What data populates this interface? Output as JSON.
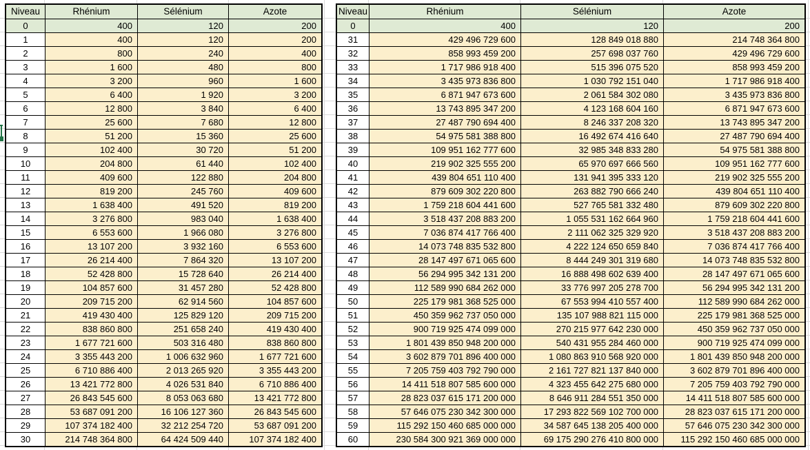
{
  "app": {
    "colors": {
      "header_fill": "#DFEAD4",
      "data_fill": "#FCEFCC",
      "cell_border": "#000000",
      "gridline": "#D9D9D9",
      "selection_green": "#217346",
      "text": "#000000"
    }
  },
  "tables": [
    {
      "columns": [
        "Niveau",
        "Rhénium",
        "Sélénium",
        "Azote"
      ],
      "base_row": [
        "0",
        "400",
        "120",
        "200"
      ],
      "rows": [
        [
          "1",
          "400",
          "120",
          "200"
        ],
        [
          "2",
          "800",
          "240",
          "400"
        ],
        [
          "3",
          "1 600",
          "480",
          "800"
        ],
        [
          "4",
          "3 200",
          "960",
          "1 600"
        ],
        [
          "5",
          "6 400",
          "1 920",
          "3 200"
        ],
        [
          "6",
          "12 800",
          "3 840",
          "6 400"
        ],
        [
          "7",
          "25 600",
          "7 680",
          "12 800"
        ],
        [
          "8",
          "51 200",
          "15 360",
          "25 600"
        ],
        [
          "9",
          "102 400",
          "30 720",
          "51 200"
        ],
        [
          "10",
          "204 800",
          "61 440",
          "102 400"
        ],
        [
          "11",
          "409 600",
          "122 880",
          "204 800"
        ],
        [
          "12",
          "819 200",
          "245 760",
          "409 600"
        ],
        [
          "13",
          "1 638 400",
          "491 520",
          "819 200"
        ],
        [
          "14",
          "3 276 800",
          "983 040",
          "1 638 400"
        ],
        [
          "15",
          "6 553 600",
          "1 966 080",
          "3 276 800"
        ],
        [
          "16",
          "13 107 200",
          "3 932 160",
          "6 553 600"
        ],
        [
          "17",
          "26 214 400",
          "7 864 320",
          "13 107 200"
        ],
        [
          "18",
          "52 428 800",
          "15 728 640",
          "26 214 400"
        ],
        [
          "19",
          "104 857 600",
          "31 457 280",
          "52 428 800"
        ],
        [
          "20",
          "209 715 200",
          "62 914 560",
          "104 857 600"
        ],
        [
          "21",
          "419 430 400",
          "125 829 120",
          "209 715 200"
        ],
        [
          "22",
          "838 860 800",
          "251 658 240",
          "419 430 400"
        ],
        [
          "23",
          "1 677 721 600",
          "503 316 480",
          "838 860 800"
        ],
        [
          "24",
          "3 355 443 200",
          "1 006 632 960",
          "1 677 721 600"
        ],
        [
          "25",
          "6 710 886 400",
          "2 013 265 920",
          "3 355 443 200"
        ],
        [
          "26",
          "13 421 772 800",
          "4 026 531 840",
          "6 710 886 400"
        ],
        [
          "27",
          "26 843 545 600",
          "8 053 063 680",
          "13 421 772 800"
        ],
        [
          "28",
          "53 687 091 200",
          "16 106 127 360",
          "26 843 545 600"
        ],
        [
          "29",
          "107 374 182 400",
          "32 212 254 720",
          "53 687 091 200"
        ],
        [
          "30",
          "214 748 364 800",
          "64 424 509 440",
          "107 374 182 400"
        ]
      ]
    },
    {
      "columns": [
        "Niveau",
        "Rhénium",
        "Sélénium",
        "Azote"
      ],
      "base_row": [
        "0",
        "400",
        "120",
        "200"
      ],
      "rows": [
        [
          "31",
          "429 496 729 600",
          "128 849 018 880",
          "214 748 364 800"
        ],
        [
          "32",
          "858 993 459 200",
          "257 698 037 760",
          "429 496 729 600"
        ],
        [
          "33",
          "1 717 986 918 400",
          "515 396 075 520",
          "858 993 459 200"
        ],
        [
          "34",
          "3 435 973 836 800",
          "1 030 792 151 040",
          "1 717 986 918 400"
        ],
        [
          "35",
          "6 871 947 673 600",
          "2 061 584 302 080",
          "3 435 973 836 800"
        ],
        [
          "36",
          "13 743 895 347 200",
          "4 123 168 604 160",
          "6 871 947 673 600"
        ],
        [
          "37",
          "27 487 790 694 400",
          "8 246 337 208 320",
          "13 743 895 347 200"
        ],
        [
          "38",
          "54 975 581 388 800",
          "16 492 674 416 640",
          "27 487 790 694 400"
        ],
        [
          "39",
          "109 951 162 777 600",
          "32 985 348 833 280",
          "54 975 581 388 800"
        ],
        [
          "40",
          "219 902 325 555 200",
          "65 970 697 666 560",
          "109 951 162 777 600"
        ],
        [
          "41",
          "439 804 651 110 400",
          "131 941 395 333 120",
          "219 902 325 555 200"
        ],
        [
          "42",
          "879 609 302 220 800",
          "263 882 790 666 240",
          "439 804 651 110 400"
        ],
        [
          "43",
          "1 759 218 604 441 600",
          "527 765 581 332 480",
          "879 609 302 220 800"
        ],
        [
          "44",
          "3 518 437 208 883 200",
          "1 055 531 162 664 960",
          "1 759 218 604 441 600"
        ],
        [
          "45",
          "7 036 874 417 766 400",
          "2 111 062 325 329 920",
          "3 518 437 208 883 200"
        ],
        [
          "46",
          "14 073 748 835 532 800",
          "4 222 124 650 659 840",
          "7 036 874 417 766 400"
        ],
        [
          "47",
          "28 147 497 671 065 600",
          "8 444 249 301 319 680",
          "14 073 748 835 532 800"
        ],
        [
          "48",
          "56 294 995 342 131 200",
          "16 888 498 602 639 400",
          "28 147 497 671 065 600"
        ],
        [
          "49",
          "112 589 990 684 262 000",
          "33 776 997 205 278 700",
          "56 294 995 342 131 200"
        ],
        [
          "50",
          "225 179 981 368 525 000",
          "67 553 994 410 557 400",
          "112 589 990 684 262 000"
        ],
        [
          "51",
          "450 359 962 737 050 000",
          "135 107 988 821 115 000",
          "225 179 981 368 525 000"
        ],
        [
          "52",
          "900 719 925 474 099 000",
          "270 215 977 642 230 000",
          "450 359 962 737 050 000"
        ],
        [
          "53",
          "1 801 439 850 948 200 000",
          "540 431 955 284 460 000",
          "900 719 925 474 099 000"
        ],
        [
          "54",
          "3 602 879 701 896 400 000",
          "1 080 863 910 568 920 000",
          "1 801 439 850 948 200 000"
        ],
        [
          "55",
          "7 205 759 403 792 790 000",
          "2 161 727 821 137 840 000",
          "3 602 879 701 896 400 000"
        ],
        [
          "56",
          "14 411 518 807 585 600 000",
          "4 323 455 642 275 680 000",
          "7 205 759 403 792 790 000"
        ],
        [
          "57",
          "28 823 037 615 171 200 000",
          "8 646 911 284 551 350 000",
          "14 411 518 807 585 600 000"
        ],
        [
          "58",
          "57 646 075 230 342 300 000",
          "17 293 822 569 102 700 000",
          "28 823 037 615 171 200 000"
        ],
        [
          "59",
          "115 292 150 460 685 000 000",
          "34 587 645 138 205 400 000",
          "57 646 075 230 342 300 000"
        ],
        [
          "60",
          "230 584 300 921 369 000 000",
          "69 175 290 276 410 800 000",
          "115 292 150 460 685 000 000"
        ]
      ]
    }
  ]
}
